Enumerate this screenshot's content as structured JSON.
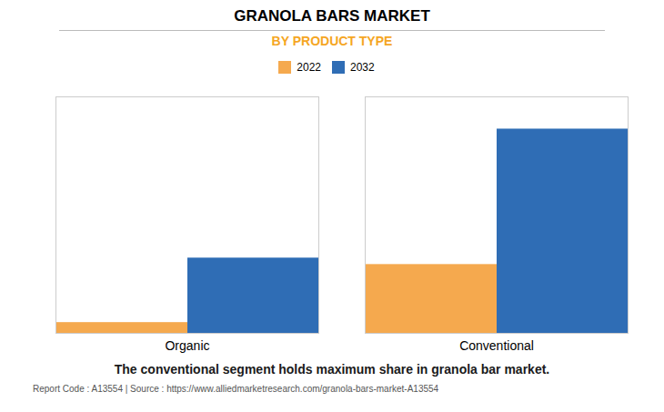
{
  "chart_data": {
    "type": "bar",
    "title": "GRANOLA BARS MARKET",
    "subtitle": "BY PRODUCT TYPE",
    "categories": [
      "Organic",
      "Conventional"
    ],
    "series": [
      {
        "name": "2022",
        "color": "#F5A94E",
        "values": [
          0.5,
          3.2
        ]
      },
      {
        "name": "2032",
        "color": "#2F6DB5",
        "values": [
          3.5,
          9.5
        ]
      }
    ],
    "ylim": [
      0,
      11
    ],
    "yticks": [],
    "grid": false,
    "tick_labels": "x",
    "legend": "top",
    "title_color": "#000000",
    "subtitle_color": "#F5A623",
    "annotation": "The conventional segment holds maximum share in granola bar market.",
    "footer": "Report Code : A13554  |  Source : https://www.alliedmarketresearch.com/granola-bars-market-A13554"
  }
}
